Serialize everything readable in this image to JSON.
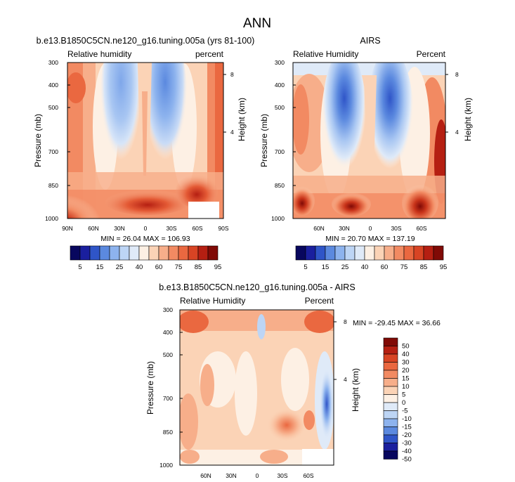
{
  "page": {
    "main_title": "ANN"
  },
  "colors": {
    "diverging_scale": [
      "#08075e",
      "#1a1f9e",
      "#2f55c8",
      "#5b89df",
      "#8db3ee",
      "#bdd5f5",
      "#dfeaf8",
      "#fdf0e4",
      "#fbd3b6",
      "#f7ae8a",
      "#f28a62",
      "#ea6840",
      "#d84424",
      "#b51f12",
      "#800a06"
    ]
  },
  "chart_data": [
    {
      "type": "heatmap",
      "title": "b.e13.B1850C5CN.ne120_g16.tuning.005a (yrs 81-100)",
      "left_label": "Relative humidity",
      "right_label": "percent",
      "ylabel": "Pressure (mb)",
      "y2label": "Height (km)",
      "y_ticks": [
        "300",
        "400",
        "500",
        "700",
        "850",
        "1000"
      ],
      "y2_ticks": [
        "8",
        "4"
      ],
      "x_ticks": [
        "90N",
        "60N",
        "30N",
        "0",
        "30S",
        "60S",
        "90S"
      ],
      "xlim": [
        90,
        -90
      ],
      "ylim": [
        1000,
        300
      ],
      "stats": "MIN = 26.04   MAX = 106.93",
      "colorbar": {
        "orientation": "horizontal",
        "labels": [
          "5",
          "15",
          "25",
          "40",
          "60",
          "75",
          "85",
          "95"
        ]
      }
    },
    {
      "type": "heatmap",
      "title": "AIRS",
      "left_label": "Relative Humidity",
      "right_label": "Percent",
      "ylabel": "Pressure (mb)",
      "y2label": "Height (km)",
      "y_ticks": [
        "300",
        "400",
        "500",
        "700",
        "850",
        "1000"
      ],
      "y2_ticks": [
        "8",
        "4"
      ],
      "x_ticks": [
        "60N",
        "30N",
        "0",
        "30S",
        "60S"
      ],
      "xlim": [
        90,
        -90
      ],
      "ylim": [
        1000,
        300
      ],
      "stats": "MIN = 20.70   MAX = 137.19",
      "colorbar": {
        "orientation": "horizontal",
        "labels": [
          "5",
          "15",
          "25",
          "40",
          "60",
          "75",
          "85",
          "95"
        ]
      }
    },
    {
      "type": "heatmap",
      "title": "b.e13.B1850C5CN.ne120_g16.tuning.005a - AIRS",
      "left_label": "Relative Humidity",
      "right_label": "Percent",
      "ylabel": "Pressure (mb)",
      "y2label": "Height (km)",
      "y_ticks": [
        "300",
        "400",
        "500",
        "700",
        "850",
        "1000"
      ],
      "y2_ticks": [
        "8",
        "4"
      ],
      "x_ticks": [
        "60N",
        "30N",
        "0",
        "30S",
        "60S"
      ],
      "xlim": [
        90,
        -90
      ],
      "ylim": [
        1000,
        300
      ],
      "stats": "MIN = -29.45   MAX =  36.66",
      "colorbar": {
        "orientation": "vertical",
        "labels": [
          "50",
          "40",
          "30",
          "20",
          "15",
          "10",
          "5",
          "0",
          "-5",
          "-10",
          "-15",
          "-20",
          "-30",
          "-40",
          "-50"
        ]
      }
    }
  ]
}
